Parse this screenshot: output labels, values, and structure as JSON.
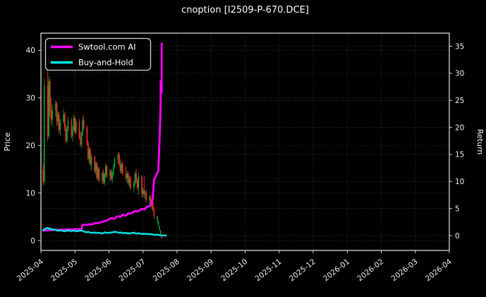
{
  "window": {
    "title": "cnoption [I2509-P-670.DCE]"
  },
  "chart_data": {
    "type": "candlestick+line",
    "title": "cnoption [I2509-P-670.DCE]",
    "ylabel_left": "Price",
    "ylabel_right": "Return",
    "grid": true,
    "legend_position": "upper-left",
    "x_ticklabels": [
      "2025-04",
      "2025-05",
      "2025-06",
      "2025-07",
      "2025-08",
      "2025-09",
      "2025-10",
      "2025-11",
      "2025-12",
      "2026-01",
      "2026-02",
      "2026-03",
      "2026-04"
    ],
    "price_ticks": [
      0,
      10,
      20,
      30,
      40
    ],
    "return_ticks": [
      0,
      5,
      10,
      15,
      20,
      25,
      30,
      35
    ],
    "price_ylim": [
      -2.07,
      43.6
    ],
    "return_ylim": [
      -2.74,
      37.42
    ],
    "colors": {
      "background": "#000000",
      "text": "#ffffff",
      "grid": "#3d3d3d",
      "up": "#0fa32f",
      "down": "#ef2d24",
      "ai_line": "#ff00ff",
      "bh_line": "#00e5e5",
      "tick": "#cfcfcf"
    },
    "legend": [
      {
        "label": "Swtool.com AI",
        "color": "#ff00ff"
      },
      {
        "label": "Buy-and-Hold",
        "color": "#00e5e5"
      }
    ],
    "candles_format": [
      "date",
      "open",
      "high",
      "low",
      "close"
    ],
    "candles": [
      [
        "2025-04-03",
        15.0,
        16.2,
        11.6,
        12.4
      ],
      [
        "2025-04-04",
        12.4,
        34.0,
        12.0,
        32.5
      ],
      [
        "2025-04-07",
        32.5,
        36.0,
        20.9,
        22.0
      ],
      [
        "2025-04-08",
        22.0,
        34.5,
        21.5,
        33.5
      ],
      [
        "2025-04-09",
        33.5,
        34.0,
        26.0,
        27.0
      ],
      [
        "2025-04-10",
        27.0,
        30.0,
        24.5,
        25.5
      ],
      [
        "2025-04-11",
        25.5,
        28.5,
        24.0,
        27.5
      ],
      [
        "2025-04-14",
        27.5,
        29.5,
        26.0,
        28.8
      ],
      [
        "2025-04-15",
        28.8,
        29.2,
        24.2,
        25.0
      ],
      [
        "2025-04-16",
        25.0,
        27.2,
        24.0,
        26.5
      ],
      [
        "2025-04-17",
        26.5,
        27.0,
        22.5,
        23.2
      ],
      [
        "2025-04-18",
        23.2,
        25.5,
        22.0,
        25.0
      ],
      [
        "2025-04-21",
        25.0,
        27.5,
        24.5,
        26.5
      ],
      [
        "2025-04-22",
        26.5,
        27.0,
        23.0,
        23.8
      ],
      [
        "2025-04-23",
        23.8,
        24.5,
        20.5,
        21.0
      ],
      [
        "2025-04-24",
        21.0,
        24.0,
        20.5,
        23.5
      ],
      [
        "2025-04-25",
        23.5,
        26.0,
        23.0,
        25.2
      ],
      [
        "2025-04-28",
        25.2,
        25.8,
        21.5,
        22.0
      ],
      [
        "2025-04-29",
        22.0,
        24.0,
        20.8,
        23.2
      ],
      [
        "2025-04-30",
        23.2,
        26.5,
        23.0,
        25.8
      ],
      [
        "2025-05-01",
        25.8,
        26.2,
        22.2,
        22.8
      ],
      [
        "2025-05-02",
        22.8,
        25.5,
        22.5,
        25.0
      ],
      [
        "2025-05-05",
        25.0,
        25.6,
        21.2,
        21.6
      ],
      [
        "2025-05-06",
        21.6,
        23.0,
        19.8,
        20.2
      ],
      [
        "2025-05-07",
        20.2,
        22.8,
        19.5,
        22.3
      ],
      [
        "2025-05-08",
        22.3,
        26.0,
        22.0,
        25.3
      ],
      [
        "2025-05-09",
        25.3,
        26.3,
        23.2,
        23.8
      ],
      [
        "2025-05-12",
        23.8,
        24.2,
        20.0,
        20.6
      ],
      [
        "2025-05-13",
        20.6,
        21.0,
        16.8,
        17.2
      ],
      [
        "2025-05-14",
        17.2,
        19.6,
        16.2,
        19.2
      ],
      [
        "2025-05-15",
        19.2,
        19.6,
        15.6,
        16.0
      ],
      [
        "2025-05-16",
        16.0,
        18.2,
        14.8,
        17.6
      ],
      [
        "2025-05-19",
        17.6,
        18.0,
        14.2,
        14.6
      ],
      [
        "2025-05-20",
        14.6,
        16.6,
        13.8,
        16.2
      ],
      [
        "2025-05-21",
        16.2,
        16.6,
        12.8,
        13.2
      ],
      [
        "2025-05-22",
        13.2,
        15.6,
        12.6,
        15.1
      ],
      [
        "2025-05-23",
        15.1,
        15.5,
        12.2,
        12.6
      ],
      [
        "2025-05-26",
        12.6,
        14.6,
        12.0,
        14.2
      ],
      [
        "2025-05-27",
        14.2,
        15.0,
        11.8,
        12.2
      ],
      [
        "2025-05-28",
        12.2,
        14.2,
        11.6,
        13.8
      ],
      [
        "2025-05-29",
        13.8,
        16.2,
        13.2,
        15.6
      ],
      [
        "2025-05-30",
        15.6,
        16.0,
        13.2,
        13.6
      ],
      [
        "2025-06-02",
        13.6,
        15.0,
        12.6,
        14.6
      ],
      [
        "2025-06-03",
        14.6,
        15.0,
        12.6,
        13.0
      ],
      [
        "2025-06-04",
        13.0,
        14.6,
        12.2,
        14.1
      ],
      [
        "2025-06-05",
        14.1,
        16.1,
        13.6,
        15.6
      ],
      [
        "2025-06-06",
        15.6,
        17.6,
        15.2,
        17.1
      ],
      [
        "2025-06-09",
        17.1,
        18.6,
        16.2,
        18.1
      ],
      [
        "2025-06-10",
        18.1,
        18.6,
        15.6,
        16.1
      ],
      [
        "2025-06-11",
        16.1,
        17.1,
        14.1,
        14.6
      ],
      [
        "2025-06-12",
        14.6,
        16.6,
        14.1,
        16.1
      ],
      [
        "2025-06-13",
        16.1,
        16.6,
        13.6,
        14.1
      ],
      [
        "2025-06-16",
        14.1,
        15.6,
        12.6,
        13.1
      ],
      [
        "2025-06-17",
        13.1,
        14.6,
        12.1,
        14.1
      ],
      [
        "2025-06-18",
        14.1,
        14.6,
        11.6,
        12.1
      ],
      [
        "2025-06-19",
        12.1,
        13.6,
        11.1,
        13.1
      ],
      [
        "2025-06-20",
        13.1,
        13.6,
        10.6,
        11.1
      ],
      [
        "2025-06-23",
        11.1,
        12.6,
        10.1,
        12.1
      ],
      [
        "2025-06-24",
        12.1,
        14.6,
        11.6,
        14.1
      ],
      [
        "2025-06-25",
        14.1,
        15.1,
        12.1,
        12.6
      ],
      [
        "2025-06-26",
        12.6,
        13.1,
        10.6,
        11.1
      ],
      [
        "2025-06-27",
        11.1,
        14.3,
        9.6,
        13.5
      ],
      [
        "2025-06-30",
        13.5,
        13.8,
        9.2,
        9.8
      ],
      [
        "2025-07-01",
        9.8,
        11.1,
        9.1,
        10.6
      ],
      [
        "2025-07-02",
        10.6,
        13.5,
        9.1,
        9.8
      ],
      [
        "2025-07-03",
        9.8,
        10.6,
        8.6,
        10.1
      ],
      [
        "2025-07-04",
        10.1,
        10.6,
        8.1,
        8.6
      ],
      [
        "2025-07-07",
        8.6,
        9.6,
        7.6,
        9.1
      ],
      [
        "2025-07-08",
        9.1,
        9.6,
        7.1,
        7.6
      ],
      [
        "2025-07-09",
        7.6,
        8.6,
        6.6,
        8.1
      ],
      [
        "2025-07-10",
        8.1,
        8.6,
        6.1,
        6.6
      ],
      [
        "2025-07-11",
        6.6,
        7.1,
        4.6,
        5.1
      ],
      [
        "2025-07-14",
        4.2,
        5.2,
        3.8,
        5.0
      ],
      [
        "2025-07-15",
        3.4,
        4.2,
        3.0,
        4.0
      ],
      [
        "2025-07-16",
        2.4,
        3.2,
        2.0,
        3.0
      ],
      [
        "2025-07-17",
        1.5,
        2.2,
        1.1,
        2.0
      ],
      [
        "2025-07-18",
        0.8,
        1.2,
        0.4,
        0.6
      ]
    ],
    "series": [
      {
        "name": "Swtool.com AI",
        "axis": "return",
        "color": "#ff00ff",
        "width": 2.8,
        "points": [
          [
            "2025-04-03",
            0.95
          ],
          [
            "2025-04-08",
            1.0
          ],
          [
            "2025-04-14",
            1.05
          ],
          [
            "2025-04-22",
            1.1
          ],
          [
            "2025-04-30",
            1.15
          ],
          [
            "2025-05-05",
            1.2
          ],
          [
            "2025-05-07",
            1.25
          ],
          [
            "2025-05-08",
            2.0
          ],
          [
            "2025-05-12",
            2.0
          ],
          [
            "2025-05-14",
            2.1
          ],
          [
            "2025-05-16",
            2.05
          ],
          [
            "2025-05-20",
            2.35
          ],
          [
            "2025-05-22",
            2.3
          ],
          [
            "2025-05-27",
            2.6
          ],
          [
            "2025-05-30",
            2.8
          ],
          [
            "2025-06-03",
            3.25
          ],
          [
            "2025-06-05",
            3.1
          ],
          [
            "2025-06-09",
            3.6
          ],
          [
            "2025-06-11",
            3.45
          ],
          [
            "2025-06-13",
            3.85
          ],
          [
            "2025-06-16",
            3.7
          ],
          [
            "2025-06-18",
            4.15
          ],
          [
            "2025-06-20",
            4.05
          ],
          [
            "2025-06-24",
            4.55
          ],
          [
            "2025-06-26",
            4.45
          ],
          [
            "2025-06-30",
            4.95
          ],
          [
            "2025-07-02",
            4.8
          ],
          [
            "2025-07-04",
            5.25
          ],
          [
            "2025-07-08",
            5.55
          ],
          [
            "2025-07-09",
            5.95
          ],
          [
            "2025-07-10",
            7.1
          ],
          [
            "2025-07-11",
            10.3
          ],
          [
            "2025-07-14",
            11.6
          ],
          [
            "2025-07-15",
            12.0
          ],
          [
            "2025-07-16",
            17.5
          ],
          [
            "2025-07-17",
            24.0
          ],
          [
            "2025-07-17",
            28.5
          ],
          [
            "2025-07-18",
            26.5
          ],
          [
            "2025-07-18",
            33.5
          ],
          [
            "2025-07-18",
            35.5
          ]
        ]
      },
      {
        "name": "Buy-and-Hold",
        "axis": "return",
        "color": "#00e5e5",
        "width": 2.4,
        "points": [
          [
            "2025-04-03",
            1.0
          ],
          [
            "2025-04-04",
            1.2
          ],
          [
            "2025-04-07",
            1.45
          ],
          [
            "2025-04-08",
            1.25
          ],
          [
            "2025-04-09",
            1.35
          ],
          [
            "2025-04-10",
            1.1
          ],
          [
            "2025-04-11",
            1.2
          ],
          [
            "2025-04-14",
            1.05
          ],
          [
            "2025-04-16",
            0.9
          ],
          [
            "2025-04-18",
            1.0
          ],
          [
            "2025-04-22",
            0.8
          ],
          [
            "2025-04-24",
            0.95
          ],
          [
            "2025-04-28",
            0.85
          ],
          [
            "2025-04-30",
            0.95
          ],
          [
            "2025-05-02",
            0.8
          ],
          [
            "2025-05-07",
            0.95
          ],
          [
            "2025-05-09",
            0.75
          ],
          [
            "2025-05-12",
            0.6
          ],
          [
            "2025-05-13",
            0.7
          ],
          [
            "2025-05-16",
            0.5
          ],
          [
            "2025-05-19",
            0.6
          ],
          [
            "2025-05-20",
            0.45
          ],
          [
            "2025-05-21",
            0.55
          ],
          [
            "2025-05-23",
            0.5
          ],
          [
            "2025-05-26",
            0.4
          ],
          [
            "2025-05-28",
            0.6
          ],
          [
            "2025-05-30",
            0.5
          ],
          [
            "2025-06-04",
            0.6
          ],
          [
            "2025-06-06",
            0.7
          ],
          [
            "2025-06-09",
            0.6
          ],
          [
            "2025-06-10",
            0.5
          ],
          [
            "2025-06-11",
            0.6
          ],
          [
            "2025-06-13",
            0.45
          ],
          [
            "2025-06-16",
            0.5
          ],
          [
            "2025-06-17",
            0.4
          ],
          [
            "2025-06-18",
            0.45
          ],
          [
            "2025-06-19",
            0.35
          ],
          [
            "2025-06-20",
            0.45
          ],
          [
            "2025-06-23",
            0.55
          ],
          [
            "2025-06-24",
            0.45
          ],
          [
            "2025-06-26",
            0.35
          ],
          [
            "2025-06-27",
            0.45
          ],
          [
            "2025-06-30",
            0.3
          ],
          [
            "2025-07-01",
            0.35
          ],
          [
            "2025-07-02",
            0.3
          ],
          [
            "2025-07-03",
            0.35
          ],
          [
            "2025-07-04",
            0.28
          ],
          [
            "2025-07-07",
            0.3
          ],
          [
            "2025-07-08",
            0.24
          ],
          [
            "2025-07-09",
            0.28
          ],
          [
            "2025-07-10",
            0.2
          ],
          [
            "2025-07-11",
            0.15
          ],
          [
            "2025-07-14",
            0.17
          ],
          [
            "2025-07-15",
            0.12
          ],
          [
            "2025-07-16",
            0.1
          ],
          [
            "2025-07-17",
            0.06
          ],
          [
            "2025-07-18",
            0.03
          ],
          [
            "2025-07-21",
            0.03
          ],
          [
            "2025-07-22",
            0.03
          ]
        ]
      }
    ]
  }
}
